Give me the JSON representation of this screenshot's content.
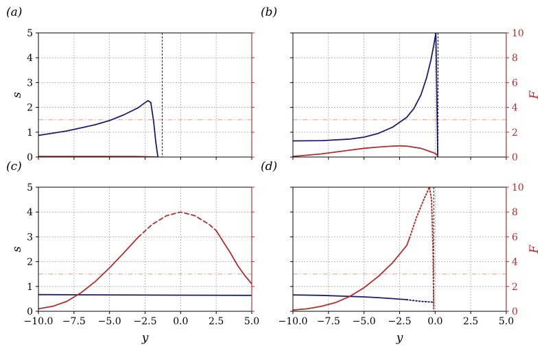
{
  "colors": {
    "s_curve": "#1a1c6b",
    "F_curve": "#b22a2a",
    "threshold": "#e8958a",
    "grid": "#8c8c8c",
    "vline": "#000000"
  },
  "chart_data": [
    {
      "id": "a",
      "panel_label": "(a)",
      "type": "line",
      "xlim": [
        -10,
        5
      ],
      "left_ylim": [
        0,
        5
      ],
      "left_yticks": [
        0,
        1,
        2,
        3,
        4,
        5
      ],
      "left_ytick_labels": [
        "0",
        "1",
        "2",
        "3",
        "4",
        "5"
      ],
      "ylabel_left": "s",
      "right_ylim": [
        0,
        10
      ],
      "right_yticks": [
        0,
        2,
        4,
        6,
        8,
        10
      ],
      "right_ytick_labels": [],
      "ylabel_right": "",
      "xticks": [
        -10,
        -7.5,
        -5,
        -2.5,
        0,
        2.5,
        5
      ],
      "xtick_labels": [],
      "xlabel": "",
      "grid": true,
      "threshold_s": 1.5,
      "vline_x": -1.3,
      "series": [
        {
          "axis": "left",
          "color_key": "s_curve",
          "style": "solid",
          "x": [
            -10,
            -8,
            -6,
            -5,
            -4,
            -3,
            -2.6,
            -2.3,
            -2.1,
            -1.9,
            -1.75,
            -1.6
          ],
          "y": [
            0.87,
            1.05,
            1.3,
            1.47,
            1.7,
            1.98,
            2.15,
            2.27,
            2.2,
            1.45,
            0.6,
            0.0
          ]
        },
        {
          "axis": "right",
          "color_key": "F_curve",
          "style": "solid",
          "x": [
            -10,
            -6,
            -3,
            -1.6
          ],
          "y": [
            0.05,
            0.05,
            0.04,
            0.0
          ]
        }
      ]
    },
    {
      "id": "b",
      "panel_label": "(b)",
      "type": "line",
      "xlim": [
        -10,
        5
      ],
      "left_ylim": [
        0,
        5
      ],
      "left_yticks": [
        0,
        1,
        2,
        3,
        4,
        5
      ],
      "left_ytick_labels": [],
      "ylabel_left": "",
      "right_ylim": [
        0,
        10
      ],
      "right_yticks": [
        0,
        2,
        4,
        6,
        8,
        10
      ],
      "right_ytick_labels": [
        "0",
        "2",
        "4",
        "6",
        "8",
        "10"
      ],
      "ylabel_right": "F",
      "xticks": [
        -10,
        -7.5,
        -5,
        -2.5,
        0,
        2.5,
        5
      ],
      "xtick_labels": [],
      "xlabel": "",
      "grid": true,
      "threshold_s": 1.5,
      "vline_x": 0.2,
      "series": [
        {
          "axis": "left",
          "color_key": "s_curve",
          "style": "solid",
          "x": [
            -10,
            -8,
            -6,
            -5,
            -4,
            -3,
            -2,
            -1.5,
            -1,
            -0.6,
            -0.3,
            -0.1,
            0.05,
            0.12,
            0.18
          ],
          "y": [
            0.65,
            0.66,
            0.72,
            0.8,
            0.95,
            1.2,
            1.6,
            1.95,
            2.5,
            3.2,
            3.9,
            4.5,
            5.0,
            2.5,
            0.0
          ]
        },
        {
          "axis": "right",
          "color_key": "F_curve",
          "style": "solid",
          "x": [
            -10,
            -8,
            -6,
            -5,
            -4,
            -3,
            -2.5,
            -2,
            -1,
            0,
            0.18
          ],
          "y": [
            0.05,
            0.25,
            0.55,
            0.7,
            0.8,
            0.88,
            0.9,
            0.88,
            0.7,
            0.3,
            0.1
          ]
        }
      ]
    },
    {
      "id": "c",
      "panel_label": "(c)",
      "type": "line",
      "xlim": [
        -10,
        5
      ],
      "left_ylim": [
        0,
        5
      ],
      "left_yticks": [
        0,
        1,
        2,
        3,
        4,
        5
      ],
      "left_ytick_labels": [
        "0",
        "1",
        "2",
        "3",
        "4",
        "5"
      ],
      "ylabel_left": "s",
      "right_ylim": [
        0,
        10
      ],
      "right_yticks": [
        0,
        2,
        4,
        6,
        8,
        10
      ],
      "right_ytick_labels": [],
      "ylabel_right": "",
      "xticks": [
        -10,
        -7.5,
        -5,
        -2.5,
        0,
        2.5,
        5
      ],
      "xtick_labels": [
        "−10.0",
        "−7.5",
        "−5.0",
        "−2.5",
        "0.0",
        "2.5",
        "5.0"
      ],
      "xlabel": "y",
      "grid": true,
      "threshold_s": 1.5,
      "vline_x": null,
      "series": [
        {
          "axis": "left",
          "color_key": "s_curve",
          "style": "solid",
          "x": [
            -10,
            -5,
            0,
            5
          ],
          "y": [
            0.67,
            0.66,
            0.65,
            0.64
          ]
        },
        {
          "axis": "right",
          "color_key": "F_curve",
          "style": "solid",
          "x": [
            -10,
            -9,
            -8,
            -7,
            -6,
            -5,
            -4,
            -3
          ],
          "y": [
            0.2,
            0.4,
            0.8,
            1.5,
            2.4,
            3.5,
            4.7,
            5.95
          ]
        },
        {
          "axis": "right",
          "color_key": "F_curve",
          "style": "dashed",
          "x": [
            -3,
            -2,
            -1,
            0,
            1,
            2,
            2.5
          ],
          "y": [
            5.95,
            7.0,
            7.7,
            8.0,
            7.7,
            7.0,
            6.5
          ]
        },
        {
          "axis": "right",
          "color_key": "F_curve",
          "style": "solid",
          "x": [
            2.5,
            3,
            3.5,
            4,
            4.5,
            5
          ],
          "y": [
            6.5,
            5.6,
            4.7,
            3.7,
            2.9,
            2.2
          ]
        }
      ]
    },
    {
      "id": "d",
      "panel_label": "(d)",
      "type": "line",
      "xlim": [
        -10,
        5
      ],
      "left_ylim": [
        0,
        5
      ],
      "left_yticks": [
        0,
        1,
        2,
        3,
        4,
        5
      ],
      "left_ytick_labels": [],
      "ylabel_left": "",
      "right_ylim": [
        0,
        10
      ],
      "right_yticks": [
        0,
        2,
        4,
        6,
        8,
        10
      ],
      "right_ytick_labels": [
        "0",
        "2",
        "4",
        "6",
        "8",
        "10"
      ],
      "ylabel_right": "F",
      "xticks": [
        -10,
        -7.5,
        -5,
        -2.5,
        0,
        2.5,
        5
      ],
      "xtick_labels": [
        "−10.0",
        "−7.5",
        "−5.0",
        "−2.5",
        "0.0",
        "2.5",
        "5.0"
      ],
      "xlabel": "y",
      "grid": true,
      "threshold_s": 1.5,
      "vline_x": -0.1,
      "series": [
        {
          "axis": "left",
          "color_key": "s_curve",
          "style": "solid",
          "x": [
            -10,
            -8,
            -6,
            -5,
            -4,
            -3,
            -2
          ],
          "y": [
            0.66,
            0.64,
            0.6,
            0.58,
            0.55,
            0.51,
            0.47
          ]
        },
        {
          "axis": "left",
          "color_key": "s_curve",
          "style": "dotted",
          "x": [
            -2,
            -1.5,
            -1,
            -0.5,
            -0.2
          ],
          "y": [
            0.47,
            0.43,
            0.4,
            0.38,
            0.37
          ]
        },
        {
          "axis": "right",
          "color_key": "F_curve",
          "style": "solid",
          "x": [
            -10,
            -9,
            -8,
            -7,
            -6,
            -5,
            -4,
            -3,
            -2,
            -1.8
          ],
          "y": [
            0.1,
            0.2,
            0.4,
            0.7,
            1.2,
            1.9,
            2.8,
            3.9,
            5.3,
            5.9
          ]
        },
        {
          "axis": "right",
          "color_key": "F_curve",
          "style": "dotted",
          "x": [
            -1.8,
            -1.3,
            -0.8,
            -0.4,
            -0.25,
            -0.15,
            -0.1
          ],
          "y": [
            5.9,
            7.6,
            9.0,
            10.0,
            9.0,
            5.0,
            0.2
          ]
        }
      ]
    }
  ]
}
